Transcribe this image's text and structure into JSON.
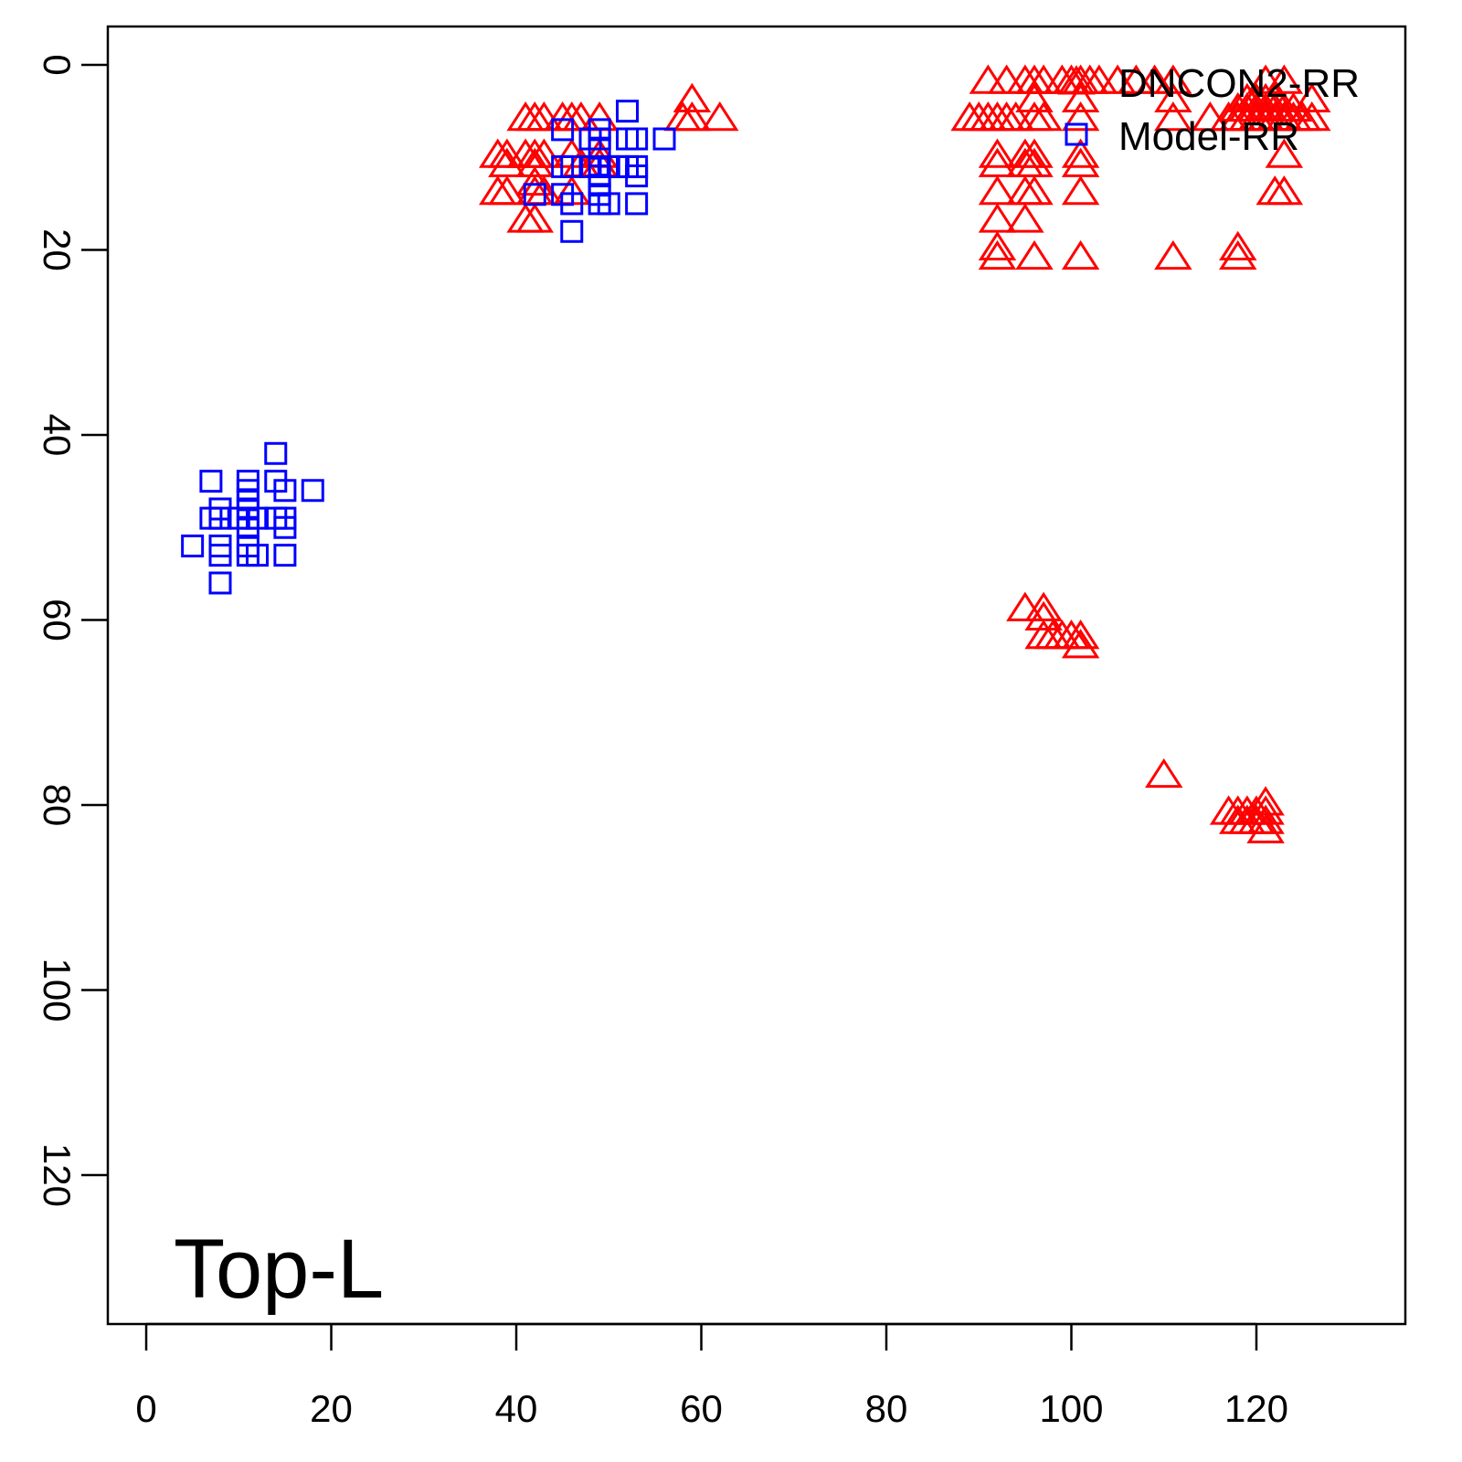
{
  "chart_data": {
    "type": "scatter",
    "title": "",
    "xlabel": "",
    "ylabel": "",
    "xlim": [
      -4.15,
      136.1
    ],
    "ylim": [
      -4.15,
      136.1
    ],
    "y_inverted": true,
    "grid": false,
    "x_ticks": [
      "0",
      "20",
      "40",
      "60",
      "80",
      "100",
      "120"
    ],
    "y_ticks": [
      "0",
      "20",
      "40",
      "60",
      "80",
      "100",
      "120"
    ],
    "annotation": "Top-L",
    "legend": {
      "placement": "top-right",
      "entries": [
        {
          "label": "DNCON2-RR",
          "marker": "triangle",
          "color": "#ff0000"
        },
        {
          "label": "Model-RR",
          "marker": "square",
          "color": "#0000ff"
        }
      ]
    },
    "series": [
      {
        "name": "DNCON2-RR",
        "marker": "triangle",
        "color": "#ff0000",
        "points": [
          [
            41,
            6
          ],
          [
            42,
            6
          ],
          [
            43,
            6
          ],
          [
            45,
            6
          ],
          [
            46,
            6
          ],
          [
            47,
            6
          ],
          [
            49,
            6
          ],
          [
            59,
            4
          ],
          [
            58,
            6
          ],
          [
            59,
            6
          ],
          [
            62,
            6
          ],
          [
            38,
            10
          ],
          [
            39,
            10
          ],
          [
            41,
            10
          ],
          [
            42,
            10
          ],
          [
            43,
            10
          ],
          [
            46,
            10
          ],
          [
            49,
            10
          ],
          [
            39,
            11
          ],
          [
            42,
            11
          ],
          [
            47,
            11
          ],
          [
            49,
            11
          ],
          [
            42,
            13
          ],
          [
            38,
            14
          ],
          [
            39,
            14
          ],
          [
            42,
            14
          ],
          [
            43,
            14
          ],
          [
            46,
            14
          ],
          [
            41,
            17
          ],
          [
            42,
            17
          ],
          [
            91,
            2
          ],
          [
            93,
            2
          ],
          [
            95,
            2
          ],
          [
            96,
            2
          ],
          [
            97,
            2
          ],
          [
            99,
            2
          ],
          [
            100,
            2
          ],
          [
            101,
            2
          ],
          [
            102,
            2
          ],
          [
            103,
            2
          ],
          [
            105,
            2
          ],
          [
            107,
            2
          ],
          [
            109,
            2
          ],
          [
            111,
            2
          ],
          [
            121,
            2
          ],
          [
            123,
            2
          ],
          [
            96,
            4
          ],
          [
            101,
            4
          ],
          [
            111,
            4
          ],
          [
            122,
            4
          ],
          [
            126,
            4
          ],
          [
            89,
            6
          ],
          [
            90,
            6
          ],
          [
            91,
            6
          ],
          [
            92,
            6
          ],
          [
            93,
            6
          ],
          [
            94,
            6
          ],
          [
            96,
            6
          ],
          [
            97,
            6
          ],
          [
            101,
            6
          ],
          [
            111,
            6
          ],
          [
            115,
            6
          ],
          [
            117,
            6
          ],
          [
            118,
            6
          ],
          [
            119,
            6
          ],
          [
            120,
            6
          ],
          [
            121,
            6
          ],
          [
            122,
            6
          ],
          [
            123,
            6
          ],
          [
            124,
            6
          ],
          [
            125,
            6
          ],
          [
            126,
            6
          ],
          [
            118,
            5
          ],
          [
            119,
            5
          ],
          [
            120,
            5
          ],
          [
            121,
            5
          ],
          [
            122,
            5
          ],
          [
            123,
            5
          ],
          [
            124,
            5
          ],
          [
            119,
            4
          ],
          [
            120,
            4
          ],
          [
            121,
            4
          ],
          [
            92,
            10
          ],
          [
            95,
            10
          ],
          [
            96,
            10
          ],
          [
            101,
            10
          ],
          [
            123,
            10
          ],
          [
            92,
            11
          ],
          [
            95,
            11
          ],
          [
            96,
            11
          ],
          [
            101,
            11
          ],
          [
            92,
            14
          ],
          [
            95,
            14
          ],
          [
            96,
            14
          ],
          [
            101,
            14
          ],
          [
            122,
            14
          ],
          [
            123,
            14
          ],
          [
            92,
            17
          ],
          [
            95,
            17
          ],
          [
            92,
            20
          ],
          [
            118,
            20
          ],
          [
            92,
            21
          ],
          [
            96,
            21
          ],
          [
            101,
            21
          ],
          [
            111,
            21
          ],
          [
            118,
            21
          ],
          [
            95,
            59
          ],
          [
            97,
            59
          ],
          [
            97,
            60
          ],
          [
            97,
            62
          ],
          [
            98,
            62
          ],
          [
            99,
            62
          ],
          [
            100,
            62
          ],
          [
            101,
            62
          ],
          [
            101,
            63
          ],
          [
            110,
            77
          ],
          [
            121,
            80
          ],
          [
            117,
            81
          ],
          [
            118,
            81
          ],
          [
            119,
            81
          ],
          [
            120,
            81
          ],
          [
            121,
            81
          ],
          [
            118,
            82
          ],
          [
            119,
            82
          ],
          [
            120,
            82
          ],
          [
            121,
            82
          ],
          [
            121,
            83
          ]
        ]
      },
      {
        "name": "Model-RR",
        "marker": "square",
        "color": "#0000ff",
        "points": [
          [
            14,
            42
          ],
          [
            7,
            45
          ],
          [
            11,
            45
          ],
          [
            14,
            45
          ],
          [
            18,
            46
          ],
          [
            11,
            46
          ],
          [
            15,
            46
          ],
          [
            11,
            47
          ],
          [
            8,
            48
          ],
          [
            11,
            48
          ],
          [
            7,
            49
          ],
          [
            8,
            49
          ],
          [
            10,
            49
          ],
          [
            11,
            49
          ],
          [
            12,
            49
          ],
          [
            14,
            49
          ],
          [
            15,
            49
          ],
          [
            11,
            50
          ],
          [
            15,
            50
          ],
          [
            5,
            52
          ],
          [
            8,
            52
          ],
          [
            11,
            52
          ],
          [
            8,
            53
          ],
          [
            11,
            53
          ],
          [
            12,
            53
          ],
          [
            15,
            53
          ],
          [
            8,
            56
          ],
          [
            52,
            5
          ],
          [
            45,
            7
          ],
          [
            49,
            7
          ],
          [
            48,
            8
          ],
          [
            49,
            8
          ],
          [
            52,
            8
          ],
          [
            53,
            8
          ],
          [
            56,
            8
          ],
          [
            49,
            9
          ],
          [
            45,
            11
          ],
          [
            46,
            11
          ],
          [
            48,
            11
          ],
          [
            49,
            11
          ],
          [
            50,
            11
          ],
          [
            51,
            11
          ],
          [
            52,
            11
          ],
          [
            53,
            11
          ],
          [
            49,
            12
          ],
          [
            53,
            12
          ],
          [
            49,
            13
          ],
          [
            45,
            14
          ],
          [
            49,
            14
          ],
          [
            42,
            14
          ],
          [
            46,
            15
          ],
          [
            49,
            15
          ],
          [
            50,
            15
          ],
          [
            53,
            15
          ],
          [
            46,
            18
          ]
        ]
      }
    ]
  }
}
